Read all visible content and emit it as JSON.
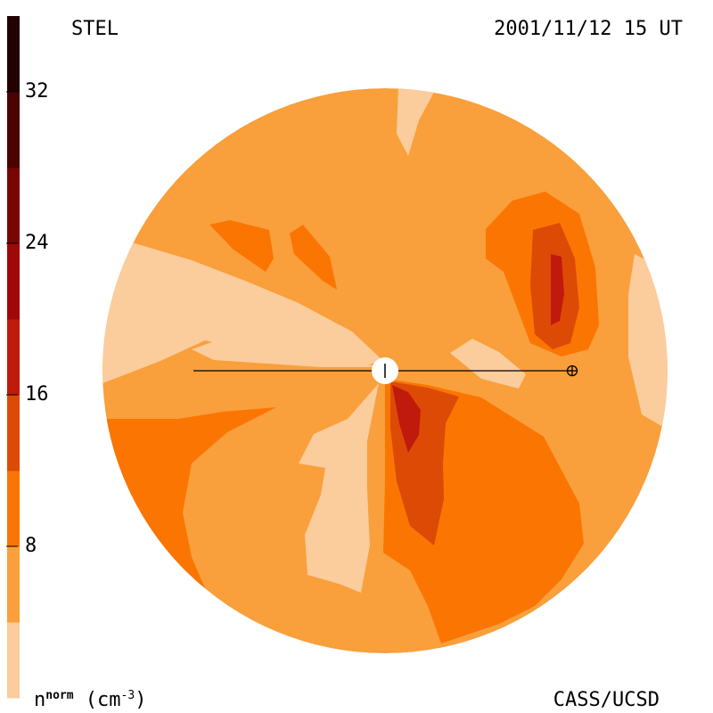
{
  "header": {
    "left": "STEL",
    "right": "2001/11/12 15 UT"
  },
  "footer": {
    "credit": "CASS/UCSD",
    "unit_base": "n",
    "unit_sup": "norm",
    "unit_rest": " (cm",
    "unit_exp": "-3",
    "unit_close": ")"
  },
  "chart_data": {
    "type": "heatmap",
    "title": "",
    "colorbar": {
      "range": [
        0,
        36
      ],
      "ticks": [
        "8",
        "16",
        "24",
        "32"
      ],
      "tick_values": [
        8,
        16,
        24,
        32
      ],
      "levels": [
        {
          "from": 0,
          "to": 4,
          "color": "#fbcc9c"
        },
        {
          "from": 4,
          "to": 8,
          "color": "#f99f3b"
        },
        {
          "from": 8,
          "to": 12,
          "color": "#fb7503"
        },
        {
          "from": 12,
          "to": 16,
          "color": "#dd4a06"
        },
        {
          "from": 16,
          "to": 20,
          "color": "#c01a0c"
        },
        {
          "from": 20,
          "to": 24,
          "color": "#a00808"
        },
        {
          "from": 24,
          "to": 28,
          "color": "#7a0505"
        },
        {
          "from": 28,
          "to": 32,
          "color": "#4a0303"
        },
        {
          "from": 32,
          "to": 36,
          "color": "#220101"
        }
      ]
    },
    "markers": {
      "sun": "sun",
      "earth": "earth-symbol"
    }
  }
}
